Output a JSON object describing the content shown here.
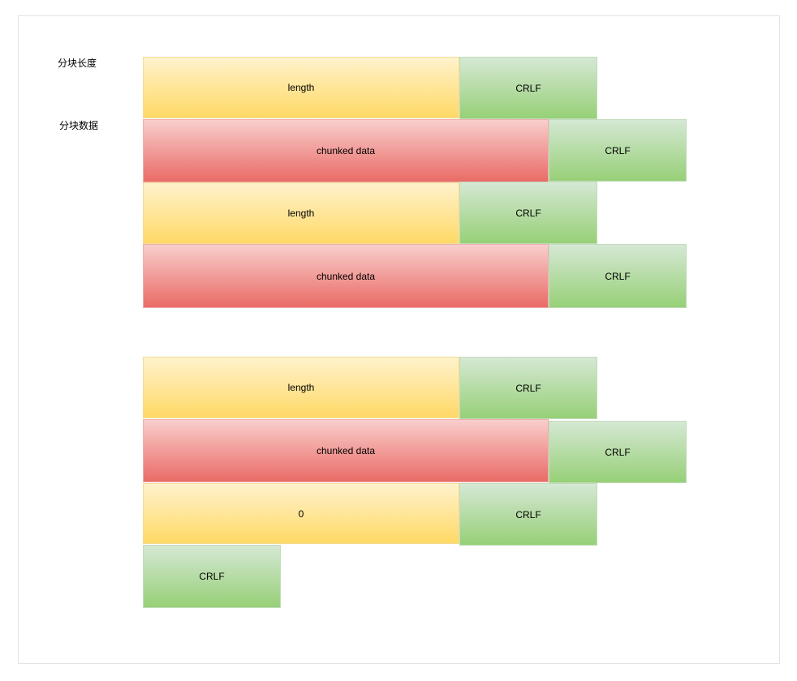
{
  "labels": {
    "chunk_length": "分块长度",
    "chunk_data": "分块数据"
  },
  "group_1": {
    "row1": {
      "field": "length",
      "crlf": "CRLF"
    },
    "row2": {
      "field": "chunked data",
      "crlf": "CRLF"
    },
    "row3": {
      "field": "length",
      "crlf": "CRLF"
    },
    "row4": {
      "field": "chunked data",
      "crlf": "CRLF"
    }
  },
  "group_2": {
    "row1": {
      "field": "length",
      "crlf": "CRLF"
    },
    "row2": {
      "field": "chunked data",
      "crlf": "CRLF"
    },
    "row3": {
      "field": "0",
      "crlf": "CRLF"
    },
    "row4": {
      "crlf": "CRLF"
    }
  },
  "colors": {
    "length_fill": "#ffd966",
    "data_fill": "#ea6b66",
    "crlf_fill": "#97d077"
  }
}
